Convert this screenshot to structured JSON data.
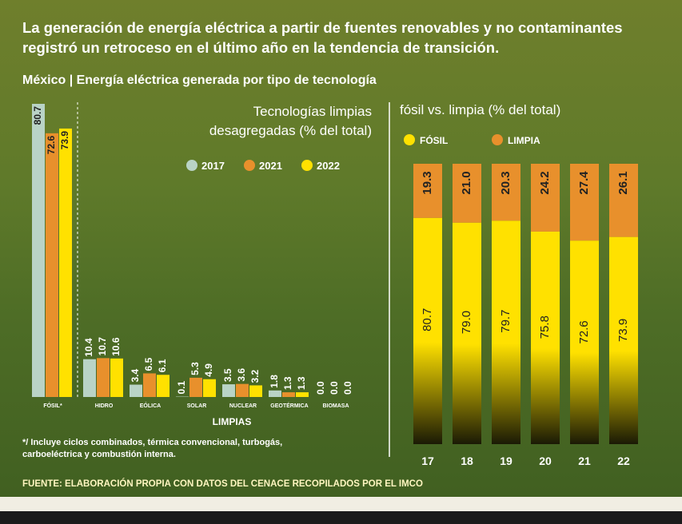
{
  "title": "La generación de energía eléctrica a partir de fuentes renovables y no contaminantes registró un retroceso en el último año en la tendencia de transición.",
  "subtitle": "México | Energía eléctrica generada por tipo de tecnología",
  "footnote": "*/ Incluye ciclos combinados, térmica convencional, turbogás, carboeléctrica y combustión interna.",
  "source": "FUENTE: ELABORACIÓN PROPIA CON DATOS  DEL CENACE RECOPILADOS POR EL IMCO",
  "chart_data": [
    {
      "type": "bar",
      "title": "Tecnologías limpias desagregadas (% del total)",
      "xlabel": "LIMPIAS",
      "categories": [
        "FÓSIL*",
        "HIDRO",
        "EÓLICA",
        "SOLAR",
        "NUCLEAR",
        "GEOTÉRMICA",
        "BIOMASA"
      ],
      "series": [
        {
          "name": "2017",
          "color": "#b9d3c6",
          "values": [
            80.7,
            10.4,
            3.4,
            0.1,
            3.5,
            1.8,
            0.0
          ],
          "value_labels": [
            "80.7",
            "10.4",
            "3.4",
            "0.1",
            "3.5",
            "1.8",
            "0.0"
          ]
        },
        {
          "name": "2021",
          "color": "#e8902c",
          "values": [
            72.6,
            10.7,
            6.5,
            5.3,
            3.6,
            1.3,
            0.0
          ],
          "value_labels": [
            "72.6",
            "10.7",
            "6.5",
            "5.3",
            "3.6",
            "1.3",
            "0.0"
          ]
        },
        {
          "name": "2022",
          "color": "#ffe100",
          "values": [
            73.9,
            10.6,
            6.1,
            4.9,
            3.2,
            1.3,
            0.0
          ],
          "value_labels": [
            "73.9",
            "10.6",
            "6.1",
            "4.9",
            "3.2",
            "1.3",
            "0.0"
          ]
        }
      ]
    },
    {
      "type": "stacked_bar",
      "title": "fósil vs. limpia (% del total)",
      "categories": [
        "17",
        "18",
        "19",
        "20",
        "21",
        "22"
      ],
      "series": [
        {
          "name": "FÓSIL",
          "color": "#ffe100",
          "values": [
            80.7,
            79.0,
            79.7,
            75.8,
            72.6,
            73.9
          ],
          "value_labels": [
            "80.7",
            "79.0",
            "79.7",
            "75.8",
            "72.6",
            "73.9"
          ]
        },
        {
          "name": "LIMPIA",
          "color": "#e8902c",
          "values": [
            19.3,
            21.0,
            20.3,
            24.2,
            27.4,
            26.1
          ],
          "value_labels": [
            "19.3",
            "21.0",
            "20.3",
            "24.2",
            "27.4",
            "26.1"
          ]
        }
      ]
    }
  ]
}
